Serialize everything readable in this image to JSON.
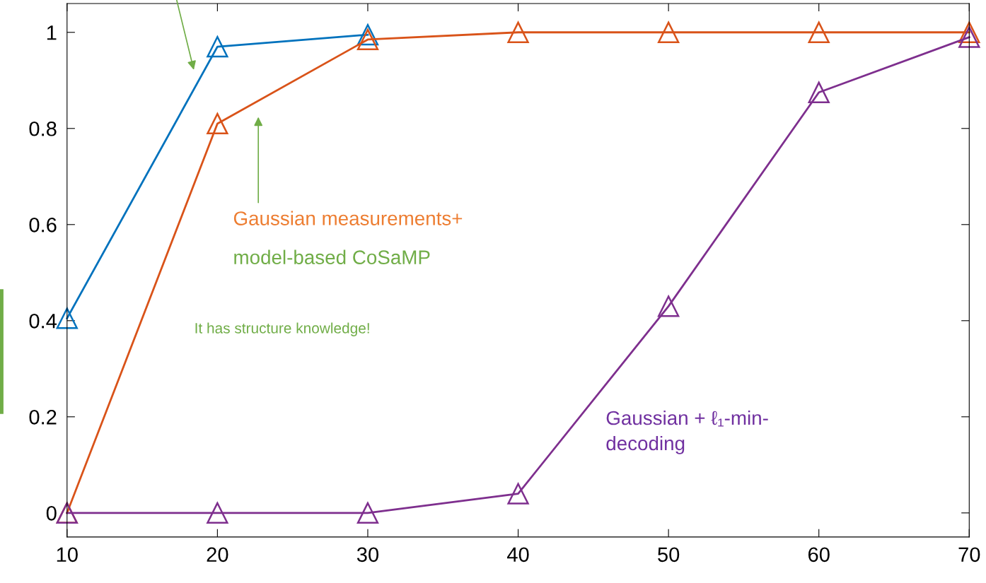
{
  "chart_data": {
    "type": "line",
    "x": [
      10,
      20,
      30,
      40,
      50,
      60,
      70
    ],
    "series": [
      {
        "color": "#0072bd",
        "values": [
          0.405,
          0.97,
          0.995,
          null,
          null,
          null,
          null
        ]
      },
      {
        "color": "#d95319",
        "values": [
          0,
          0.81,
          0.985,
          1,
          1,
          1,
          1
        ]
      },
      {
        "color": "#7e2f8e",
        "values": [
          0,
          0,
          0,
          0.04,
          0.43,
          0.875,
          0.99
        ]
      }
    ],
    "marker": "triangle",
    "line_style": "solid",
    "grid": false,
    "legend": false,
    "xlim": [
      10,
      70
    ],
    "xticks": [
      10,
      20,
      30,
      40,
      50,
      60,
      70
    ],
    "ylim": [
      -0.05,
      1.06
    ],
    "yticks": [
      0,
      0.2,
      0.4,
      0.6,
      0.8,
      1
    ],
    "annotations": [
      "Gaussian measurements+",
      "model-based CoSaMP",
      "It has structure knowledge!",
      "Gaussian + ℓ₁-min-\ndecoding"
    ]
  }
}
